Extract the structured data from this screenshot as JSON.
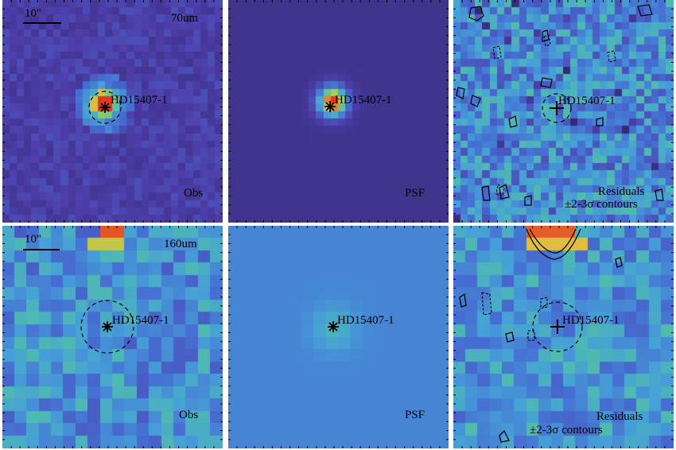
{
  "colors": {
    "background": "#ffffff",
    "frame": "#000000",
    "text": "#000000"
  },
  "figure": {
    "rows": [
      {
        "band_label": "70um",
        "scale_label": "10\"",
        "panels": [
          {
            "kind": "obs",
            "corner_label": "Obs",
            "source_label": "HD15407-1",
            "marker": "star",
            "aperture": true
          },
          {
            "kind": "psf",
            "corner_label": "PSF",
            "source_label": "HD15407-1",
            "marker": "star",
            "aperture": false
          },
          {
            "kind": "residual",
            "corner_label": "Residuals",
            "corner_label_2": "±2-3σ contours",
            "source_label": "HD15407-1",
            "marker": "plus",
            "aperture": true
          }
        ]
      },
      {
        "band_label": "160um",
        "scale_label": "10\"",
        "panels": [
          {
            "kind": "obs",
            "corner_label": "Obs",
            "source_label": "HD15407-1",
            "marker": "star",
            "aperture": true
          },
          {
            "kind": "psf",
            "corner_label": "PSF",
            "source_label": "HD15407-1",
            "marker": "star",
            "aperture": false
          },
          {
            "kind": "residual",
            "corner_label": "Residuals",
            "corner_label_2": "±2-3σ contours",
            "source_label": "HD15407-1",
            "marker": "plus",
            "aperture": true
          }
        ]
      }
    ]
  }
}
